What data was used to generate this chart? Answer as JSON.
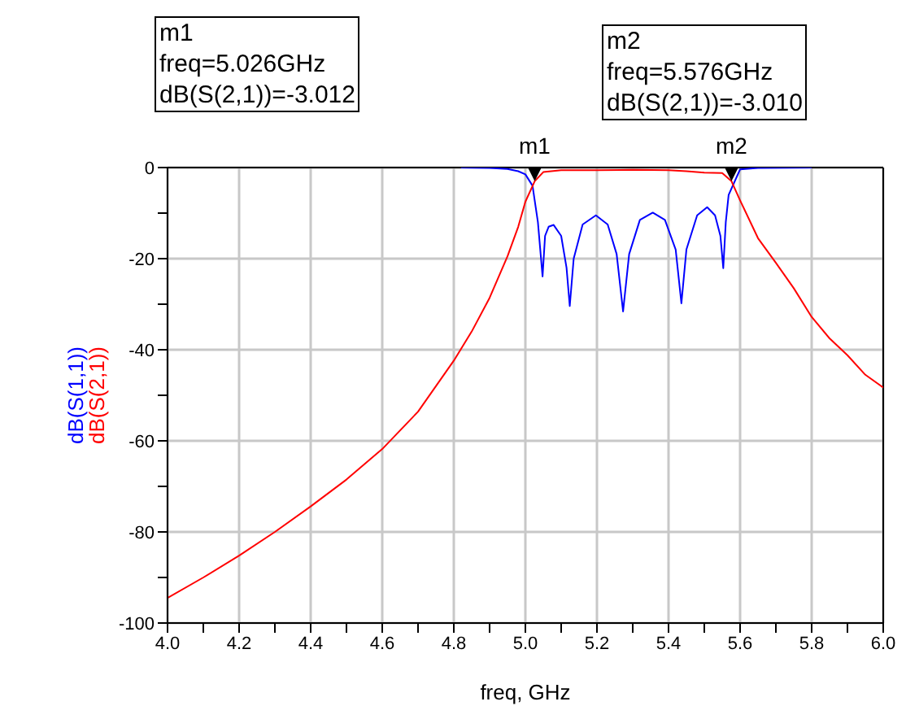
{
  "chart_data": {
    "type": "line",
    "xlabel": "freq, GHz",
    "xlim": [
      4.0,
      6.0
    ],
    "xticks": [
      {
        "value": 4.0,
        "label": "4.0"
      },
      {
        "value": 4.1,
        "label": null
      },
      {
        "value": 4.2,
        "label": "4.2"
      },
      {
        "value": 4.3,
        "label": null
      },
      {
        "value": 4.4,
        "label": "4.4"
      },
      {
        "value": 4.5,
        "label": null
      },
      {
        "value": 4.6,
        "label": "4.6"
      },
      {
        "value": 4.7,
        "label": null
      },
      {
        "value": 4.8,
        "label": "4.8"
      },
      {
        "value": 4.9,
        "label": null
      },
      {
        "value": 5.0,
        "label": "5.0"
      },
      {
        "value": 5.1,
        "label": null
      },
      {
        "value": 5.2,
        "label": "5.2"
      },
      {
        "value": 5.3,
        "label": null
      },
      {
        "value": 5.4,
        "label": "5.4"
      },
      {
        "value": 5.5,
        "label": null
      },
      {
        "value": 5.6,
        "label": "5.6"
      },
      {
        "value": 5.7,
        "label": null
      },
      {
        "value": 5.8,
        "label": "5.8"
      },
      {
        "value": 5.9,
        "label": null
      },
      {
        "value": 6.0,
        "label": "6.0"
      }
    ],
    "ylim": [
      -100,
      0
    ],
    "yticks": [
      -100,
      {
        "value": -90,
        "label": null
      },
      -80,
      {
        "value": -70,
        "label": null
      },
      -60,
      {
        "value": -50,
        "label": null
      },
      -40,
      {
        "value": -30,
        "label": null
      },
      -20,
      {
        "value": -10,
        "label": null
      },
      0
    ],
    "grid": true,
    "marker": "none",
    "line_style": "solid",
    "series": [
      {
        "name": "dB(S(1,1))",
        "color": "#0000ff",
        "x": [
          4.82,
          4.9,
          4.95,
          4.98,
          5.0,
          5.02,
          5.035,
          5.048,
          5.055,
          5.065,
          5.079,
          5.1,
          5.115,
          5.124,
          5.135,
          5.16,
          5.197,
          5.23,
          5.255,
          5.273,
          5.29,
          5.32,
          5.356,
          5.39,
          5.42,
          5.436,
          5.45,
          5.48,
          5.508,
          5.53,
          5.545,
          5.553,
          5.56,
          5.568,
          5.6,
          5.65,
          5.8
        ],
        "values": [
          0,
          -0.1,
          -0.3,
          -0.8,
          -1.5,
          -4,
          -12,
          -23.9,
          -15,
          -13,
          -12.6,
          -15,
          -22,
          -30.4,
          -20,
          -12.5,
          -10.5,
          -12.5,
          -19,
          -31.6,
          -19,
          -11.5,
          -9.9,
          -11.5,
          -18,
          -29.8,
          -18,
          -10.5,
          -8.7,
          -10.5,
          -15,
          -22.1,
          -12,
          -6,
          -0.4,
          -0.1,
          0
        ]
      },
      {
        "name": "dB(S(2,1))",
        "color": "#ff0000",
        "x": [
          4.0,
          4.1,
          4.2,
          4.3,
          4.4,
          4.5,
          4.6,
          4.7,
          4.8,
          4.85,
          4.9,
          4.95,
          4.98,
          5.0,
          5.026,
          5.05,
          5.1,
          5.2,
          5.3,
          5.4,
          5.45,
          5.5,
          5.55,
          5.576,
          5.6,
          5.65,
          5.7,
          5.75,
          5.8,
          5.85,
          5.9,
          5.95,
          6.0
        ],
        "values": [
          -94.5,
          -90,
          -85.2,
          -80,
          -74.4,
          -68.5,
          -61.8,
          -53.6,
          -42.4,
          -36,
          -28.6,
          -19.5,
          -13,
          -7.5,
          -3,
          -1,
          -0.6,
          -0.6,
          -0.5,
          -0.6,
          -0.8,
          -1.1,
          -1.2,
          -3,
          -7.2,
          -15.5,
          -20.9,
          -26.5,
          -32.8,
          -37.5,
          -41.2,
          -45.5,
          -48.3
        ]
      }
    ],
    "annotations": [
      "m1\nfreq=5.026GHz\ndB(S(2,1))=-3.012",
      "m2\nfreq=5.576GHz\ndB(S(2,1))=-3.010",
      {
        "text": "m1",
        "x": 5.026,
        "y": -3
      },
      {
        "text": "m2",
        "x": 5.576,
        "y": -3
      }
    ]
  }
}
